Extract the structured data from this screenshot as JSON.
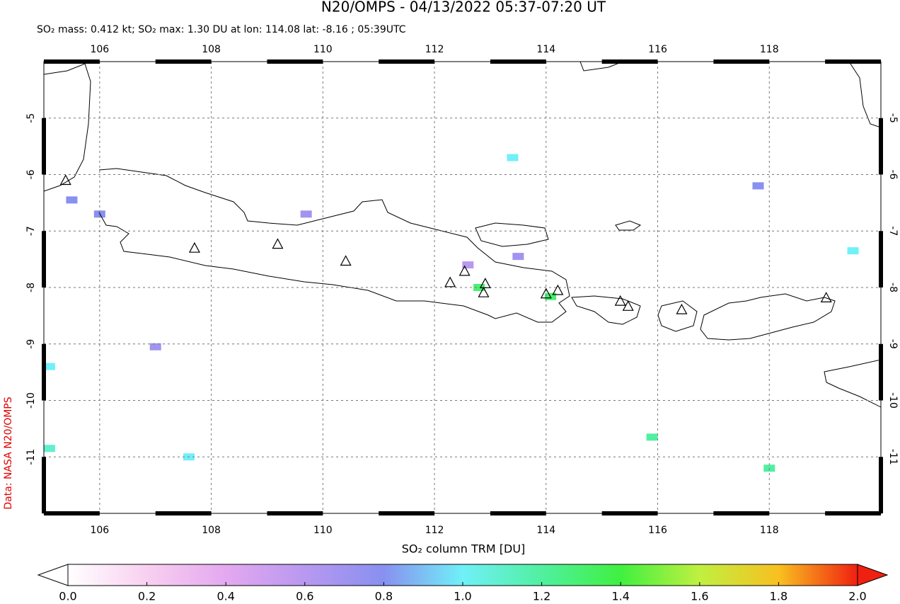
{
  "title": "N20/OMPS - 04/13/2022 05:37-07:20 UT",
  "subtitle": "SO₂ mass: 0.412 kt; SO₂ max: 1.30 DU at lon: 114.08 lat: -8.16 ; 05:39UTC",
  "source": "Data: NASA N20/OMPS",
  "map": {
    "xlim": [
      105,
      120
    ],
    "ylim": [
      -12,
      -4
    ],
    "xticks": [
      106,
      108,
      110,
      112,
      114,
      116,
      118
    ],
    "yticks": [
      -5,
      -6,
      -7,
      -8,
      -9,
      -10,
      -11
    ],
    "grid": true,
    "volcanoes": [
      {
        "lon": 105.39,
        "lat": -6.1
      },
      {
        "lon": 107.7,
        "lat": -7.3
      },
      {
        "lon": 109.19,
        "lat": -7.23
      },
      {
        "lon": 110.41,
        "lat": -7.53
      },
      {
        "lon": 112.28,
        "lat": -7.91
      },
      {
        "lon": 112.54,
        "lat": -7.71
      },
      {
        "lon": 112.91,
        "lat": -7.93
      },
      {
        "lon": 112.88,
        "lat": -8.09
      },
      {
        "lon": 114.0,
        "lat": -8.11
      },
      {
        "lon": 114.21,
        "lat": -8.05
      },
      {
        "lon": 115.33,
        "lat": -8.24
      },
      {
        "lon": 115.47,
        "lat": -8.33
      },
      {
        "lon": 116.43,
        "lat": -8.39
      },
      {
        "lon": 119.02,
        "lat": -8.18
      }
    ],
    "pixels": [
      {
        "lon": 112.8,
        "lat": -8.0,
        "value": 1.3
      },
      {
        "lon": 114.08,
        "lat": -8.16,
        "value": 1.3
      },
      {
        "lon": 105.1,
        "lat": -9.4,
        "value": 1.0
      },
      {
        "lon": 105.1,
        "lat": -10.85,
        "value": 1.1
      },
      {
        "lon": 107.6,
        "lat": -11.0,
        "value": 1.0
      },
      {
        "lon": 113.4,
        "lat": -5.7,
        "value": 1.0
      },
      {
        "lon": 119.5,
        "lat": -7.35,
        "value": 1.0
      },
      {
        "lon": 118.0,
        "lat": -11.2,
        "value": 1.2
      },
      {
        "lon": 115.9,
        "lat": -10.65,
        "value": 1.2
      },
      {
        "lon": 106.0,
        "lat": -6.7,
        "value": 0.8
      },
      {
        "lon": 105.5,
        "lat": -6.45,
        "value": 0.8
      },
      {
        "lon": 117.8,
        "lat": -6.2,
        "value": 0.8
      },
      {
        "lon": 113.5,
        "lat": -7.45,
        "value": 0.7
      },
      {
        "lon": 112.6,
        "lat": -7.6,
        "value": 0.6
      },
      {
        "lon": 109.7,
        "lat": -6.7,
        "value": 0.7
      },
      {
        "lon": 107.0,
        "lat": -9.05,
        "value": 0.7
      }
    ]
  },
  "colorbar": {
    "label": "SO₂ column TRM [DU]",
    "lim": [
      0,
      2
    ],
    "ticks": [
      {
        "value": 0,
        "label": "0.0"
      },
      0.2,
      0.4,
      0.6,
      0.8,
      {
        "value": 1,
        "label": "1.0"
      },
      1.2,
      1.4,
      1.6,
      1.8,
      {
        "value": 2,
        "label": "2.0"
      }
    ],
    "colors": [
      "#ffffff",
      "#f8d0f0",
      "#e4a8f0",
      "#b898f0",
      "#8890f0",
      "#70f0f8",
      "#50f0a0",
      "#40f040",
      "#c0f040",
      "#f8c020",
      "#f02010"
    ]
  }
}
